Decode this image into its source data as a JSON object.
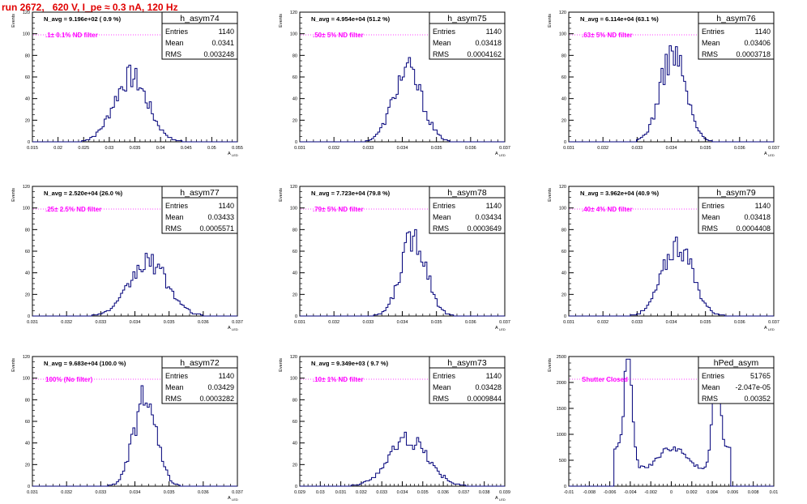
{
  "page": {
    "title": "run 2672,   620 V, I_pe ≈ 0.3 nA, 120 Hz"
  },
  "colors": {
    "histogram": "#00007a",
    "annotation": "#ff00ff",
    "title": "#e00000",
    "frame": "#000000"
  },
  "stat_labels": {
    "entries": "Entries",
    "mean": "Mean",
    "rms": "RMS"
  },
  "chart_data": [
    {
      "type": "histogram",
      "name": "h_asym74",
      "entries": "1140",
      "mean": "0.0341",
      "rms": "0.003248",
      "navg": "N_avg = 9.196e+02 ( 0.9 %)",
      "annotation": ".1± 0.1% ND filter",
      "ylabel": "Events",
      "xlabel": "A",
      "xlabel_sub": "LED",
      "xlim": [
        0.015,
        0.055
      ],
      "ylim": [
        0,
        120
      ],
      "xticks": [
        0.015,
        0.02,
        0.025,
        0.03,
        0.035,
        0.04,
        0.045,
        0.05,
        0.055
      ],
      "xtick_labels": [
        "0.015",
        "0.02",
        "0.025",
        "0.03",
        "0.035",
        "0.04",
        "0.045",
        "0.05",
        "0.055"
      ],
      "yticks": [
        0,
        20,
        40,
        60,
        80,
        100,
        120
      ],
      "ytick_labels": [
        "0",
        "20",
        "40",
        "60",
        "80",
        "100",
        "120"
      ],
      "distribution": {
        "kind": "gauss",
        "center": 0.0342,
        "sigma": 0.0033,
        "peak": 60,
        "lo": 0.0245,
        "hi": 0.0445
      }
    },
    {
      "type": "histogram",
      "name": "h_asym75",
      "entries": "1140",
      "mean": "0.03418",
      "rms": "0.0004162",
      "navg": "N_avg = 4.954e+04 (51.2 %)",
      "annotation": ".50± 5% ND filter",
      "ylabel": "Events",
      "xlabel": "A",
      "xlabel_sub": "LED",
      "xlim": [
        0.031,
        0.037
      ],
      "ylim": [
        0,
        120
      ],
      "xticks": [
        0.031,
        0.032,
        0.033,
        0.034,
        0.035,
        0.036,
        0.037
      ],
      "xtick_labels": [
        "0.031",
        "0.032",
        "0.033",
        "0.034",
        "0.035",
        "0.036",
        "0.037"
      ],
      "yticks": [
        0,
        20,
        40,
        60,
        80,
        100,
        120
      ],
      "ytick_labels": [
        "0",
        "20",
        "40",
        "60",
        "80",
        "100",
        "120"
      ],
      "distribution": {
        "kind": "gauss",
        "center": 0.03415,
        "sigma": 0.00042,
        "peak": 66,
        "lo": 0.0329,
        "hi": 0.0354
      }
    },
    {
      "type": "histogram",
      "name": "h_asym76",
      "entries": "1140",
      "mean": "0.03406",
      "rms": "0.0003718",
      "navg": "N_avg = 6.114e+04 (63.1 %)",
      "annotation": ".63± 5% ND filter",
      "ylabel": "Events",
      "xlabel": "A",
      "xlabel_sub": "LED",
      "xlim": [
        0.031,
        0.037
      ],
      "ylim": [
        0,
        120
      ],
      "xticks": [
        0.031,
        0.032,
        0.033,
        0.034,
        0.035,
        0.036,
        0.037
      ],
      "xtick_labels": [
        "0.031",
        "0.032",
        "0.033",
        "0.034",
        "0.035",
        "0.036",
        "0.037"
      ],
      "yticks": [
        0,
        20,
        40,
        60,
        80,
        100,
        120
      ],
      "ytick_labels": [
        "0",
        "20",
        "40",
        "60",
        "80",
        "100",
        "120"
      ],
      "distribution": {
        "kind": "gauss",
        "center": 0.03405,
        "sigma": 0.00037,
        "peak": 82,
        "lo": 0.033,
        "hi": 0.0352
      }
    },
    {
      "type": "histogram",
      "name": "h_asym77",
      "entries": "1140",
      "mean": "0.03433",
      "rms": "0.0005571",
      "navg": "N_avg = 2.520e+04 (26.0 %)",
      "annotation": ".25± 2.5% ND filter",
      "ylabel": "Events",
      "xlabel": "A",
      "xlabel_sub": "LED",
      "xlim": [
        0.031,
        0.037
      ],
      "ylim": [
        0,
        120
      ],
      "xticks": [
        0.031,
        0.032,
        0.033,
        0.034,
        0.035,
        0.036,
        0.037
      ],
      "xtick_labels": [
        "0.031",
        "0.032",
        "0.033",
        "0.034",
        "0.035",
        "0.036",
        "0.037"
      ],
      "yticks": [
        0,
        20,
        40,
        60,
        80,
        100,
        120
      ],
      "ytick_labels": [
        "0",
        "20",
        "40",
        "60",
        "80",
        "100",
        "120"
      ],
      "distribution": {
        "kind": "gauss",
        "center": 0.0344,
        "sigma": 0.00055,
        "peak": 50,
        "lo": 0.0325,
        "hi": 0.036
      }
    },
    {
      "type": "histogram",
      "name": "h_asym78",
      "entries": "1140",
      "mean": "0.03434",
      "rms": "0.0003649",
      "navg": "N_avg = 7.723e+04 (79.8 %)",
      "annotation": ".79± 5% ND filter",
      "ylabel": "Events",
      "xlabel": "A",
      "xlabel_sub": "LED",
      "xlim": [
        0.031,
        0.037
      ],
      "ylim": [
        0,
        120
      ],
      "xticks": [
        0.031,
        0.032,
        0.033,
        0.034,
        0.035,
        0.036,
        0.037
      ],
      "xtick_labels": [
        "0.031",
        "0.032",
        "0.033",
        "0.034",
        "0.035",
        "0.036",
        "0.037"
      ],
      "yticks": [
        0,
        20,
        40,
        60,
        80,
        100,
        120
      ],
      "ytick_labels": [
        "0",
        "20",
        "40",
        "60",
        "80",
        "100",
        "120"
      ],
      "distribution": {
        "kind": "gauss",
        "center": 0.03434,
        "sigma": 0.00037,
        "peak": 74,
        "lo": 0.0331,
        "hi": 0.0358
      }
    },
    {
      "type": "histogram",
      "name": "h_asym79",
      "entries": "1140",
      "mean": "0.03418",
      "rms": "0.0004408",
      "navg": "N_avg = 3.962e+04 (40.9 %)",
      "annotation": ".40± 4% ND filter",
      "ylabel": "Events",
      "xlabel": "A",
      "xlabel_sub": "LED",
      "xlim": [
        0.031,
        0.037
      ],
      "ylim": [
        0,
        120
      ],
      "xticks": [
        0.031,
        0.032,
        0.033,
        0.034,
        0.035,
        0.036,
        0.037
      ],
      "xtick_labels": [
        "0.031",
        "0.032",
        "0.033",
        "0.034",
        "0.035",
        "0.036",
        "0.037"
      ],
      "yticks": [
        0,
        20,
        40,
        60,
        80,
        100,
        120
      ],
      "ytick_labels": [
        "0",
        "20",
        "40",
        "60",
        "80",
        "100",
        "120"
      ],
      "distribution": {
        "kind": "gauss",
        "center": 0.03418,
        "sigma": 0.00044,
        "peak": 66,
        "lo": 0.0328,
        "hi": 0.0356
      }
    },
    {
      "type": "histogram",
      "name": "h_asym72",
      "entries": "1140",
      "mean": "0.03429",
      "rms": "0.0003282",
      "navg": "N_avg = 9.683e+04 (100.0 %)",
      "annotation": "100% (No filter)",
      "ylabel": "Events",
      "xlabel": "A",
      "xlabel_sub": "LED",
      "xlim": [
        0.031,
        0.037
      ],
      "ylim": [
        0,
        120
      ],
      "xticks": [
        0.031,
        0.032,
        0.033,
        0.034,
        0.035,
        0.036,
        0.037
      ],
      "xtick_labels": [
        "0.031",
        "0.032",
        "0.033",
        "0.034",
        "0.035",
        "0.036",
        "0.037"
      ],
      "yticks": [
        0,
        20,
        40,
        60,
        80,
        100,
        120
      ],
      "ytick_labels": [
        "0",
        "20",
        "40",
        "60",
        "80",
        "100",
        "120"
      ],
      "distribution": {
        "kind": "gauss",
        "center": 0.03429,
        "sigma": 0.00033,
        "peak": 80,
        "lo": 0.0332,
        "hi": 0.0356
      }
    },
    {
      "type": "histogram",
      "name": "h_asym73",
      "entries": "1140",
      "mean": "0.03428",
      "rms": "0.0009844",
      "navg": "N_avg = 9.349e+03 ( 9.7 %)",
      "annotation": ".10± 1% ND filter",
      "ylabel": "Events",
      "xlabel": "A",
      "xlabel_sub": "LED",
      "xlim": [
        0.029,
        0.039
      ],
      "ylim": [
        0,
        120
      ],
      "xticks": [
        0.029,
        0.03,
        0.031,
        0.032,
        0.033,
        0.034,
        0.035,
        0.036,
        0.037,
        0.038,
        0.039
      ],
      "xtick_labels": [
        "0.029",
        "0.03",
        "0.031",
        "0.032",
        "0.033",
        "0.034",
        "0.035",
        "0.036",
        "0.037",
        "0.038",
        "0.039"
      ],
      "yticks": [
        0,
        20,
        40,
        60,
        80,
        100,
        120
      ],
      "ytick_labels": [
        "0",
        "20",
        "40",
        "60",
        "80",
        "100",
        "120"
      ],
      "distribution": {
        "kind": "gauss",
        "center": 0.0343,
        "sigma": 0.00095,
        "peak": 44,
        "lo": 0.031,
        "hi": 0.0375
      }
    },
    {
      "type": "histogram",
      "name": "hPed_asym",
      "entries": "51765",
      "mean": "-2.047e-05",
      "rms": "0.00352",
      "navg": "",
      "annotation": "Shutter Closed",
      "ylabel": "Events",
      "xlabel": "",
      "xlabel_sub": "",
      "xlim": [
        -0.01,
        0.01
      ],
      "ylim": [
        0,
        2500
      ],
      "xticks": [
        -0.01,
        -0.008,
        -0.006,
        -0.004,
        -0.002,
        0,
        0.002,
        0.004,
        0.006,
        0.008,
        0.01
      ],
      "xtick_labels": [
        "-0.01",
        "-0.008",
        "-0.006",
        "-0.004",
        "-0.002",
        "0",
        "0.002",
        "0.004",
        "0.006",
        "0.008",
        "0.01"
      ],
      "yticks": [
        0,
        500,
        1000,
        1500,
        2000,
        2500
      ],
      "ytick_labels": [
        "0",
        "500",
        "1000",
        "1500",
        "2000",
        "2500"
      ],
      "distribution": {
        "kind": "bimodal",
        "peaks": [
          -0.0042,
          0.0044
        ],
        "peak": 2150,
        "valley": 550,
        "lo": -0.0056,
        "hi": 0.0058
      }
    }
  ]
}
